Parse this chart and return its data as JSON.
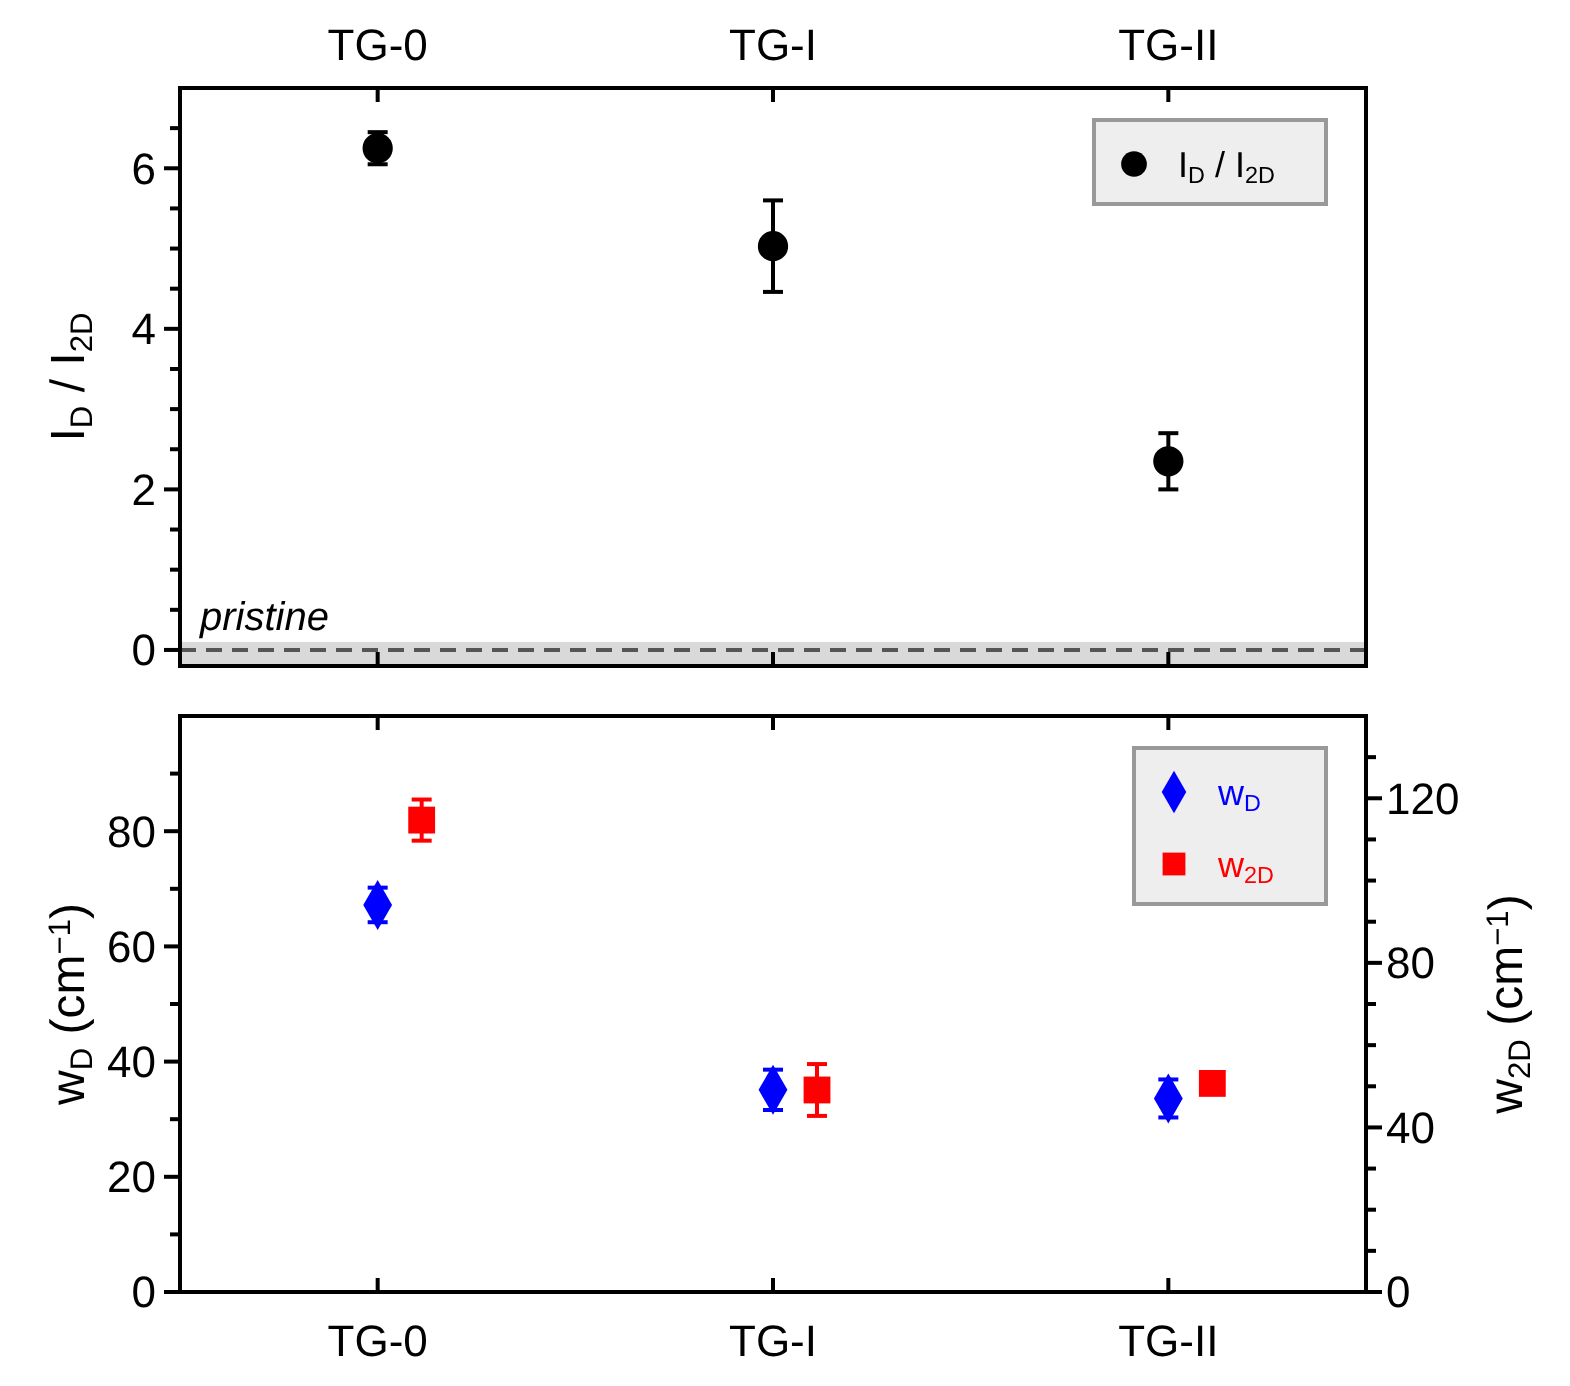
{
  "chart_data": [
    {
      "type": "scatter",
      "categories": [
        "TG-0",
        "TG-I",
        "TG-II"
      ],
      "ylabel": "I$_{D}$ / I$_{2D}$",
      "ylim": [
        -0.2,
        7
      ],
      "yticks": [
        0,
        {
          "value": 0.5,
          "label": null
        },
        {
          "value": 1,
          "label": null
        },
        {
          "value": 1.5,
          "label": null
        },
        2,
        {
          "value": 2.5,
          "label": null
        },
        {
          "value": 3,
          "label": null
        },
        {
          "value": 3.5,
          "label": null
        },
        4,
        {
          "value": 4.5,
          "label": null
        },
        {
          "value": 5,
          "label": null
        },
        {
          "value": 5.5,
          "label": null
        },
        6,
        {
          "value": 6.5,
          "label": null
        }
      ],
      "marker": "circle",
      "legend": "top right",
      "series": [
        {
          "name": "I$_{D}$ / I$_{2D}$",
          "color": "#000000",
          "values": [
            6.25,
            5.03,
            2.35
          ],
          "errors": [
            0.2,
            0.57,
            0.35
          ]
        }
      ],
      "ref_lines": [
        {
          "axis": "y",
          "value": 0,
          "label": "pristine",
          "color": "#555555",
          "line_style": "dashed"
        }
      ],
      "bands": [
        {
          "axis": "y",
          "from": -0.2,
          "to": 0.1,
          "color": "#d9d9d9"
        }
      ]
    },
    {
      "type": "scatter",
      "categories": [
        "TG-0",
        "TG-I",
        "TG-II"
      ],
      "ylabel": "w$_{D}$ (cm$^{−1}$)",
      "y2label": "w$_{2D}$ (cm$^{−1}$)",
      "ylim": [
        0,
        100
      ],
      "yticks": [
        0,
        {
          "value": 10,
          "label": null
        },
        20,
        {
          "value": 30,
          "label": null
        },
        40,
        {
          "value": 50,
          "label": null
        },
        60,
        {
          "value": 70,
          "label": null
        },
        80,
        {
          "value": 90,
          "label": null
        }
      ],
      "y2lim": [
        0,
        140
      ],
      "y2ticks": [
        0,
        {
          "value": 10,
          "label": null
        },
        {
          "value": 20,
          "label": null
        },
        {
          "value": 30,
          "label": null
        },
        40,
        {
          "value": 50,
          "label": null
        },
        {
          "value": 60,
          "label": null
        },
        {
          "value": 70,
          "label": null
        },
        80,
        {
          "value": 90,
          "label": null
        },
        {
          "value": 100,
          "label": null
        },
        {
          "value": 110,
          "label": null
        },
        120,
        {
          "value": 130,
          "label": null
        }
      ],
      "legend": "top right",
      "series": [
        {
          "name": "w$_{D}$",
          "color": "#0000ff",
          "marker": "diamond",
          "values": [
            67.2,
            35.1,
            33.6
          ],
          "errors": [
            3,
            3.5,
            3.3
          ]
        },
        {
          "name": "w$_{2D}$",
          "color": "#ff0000",
          "marker": "square",
          "axis": "y2",
          "values": [
            114.7,
            49.1,
            50.7
          ],
          "errors": [
            5,
            6.3,
            null
          ]
        }
      ]
    }
  ]
}
